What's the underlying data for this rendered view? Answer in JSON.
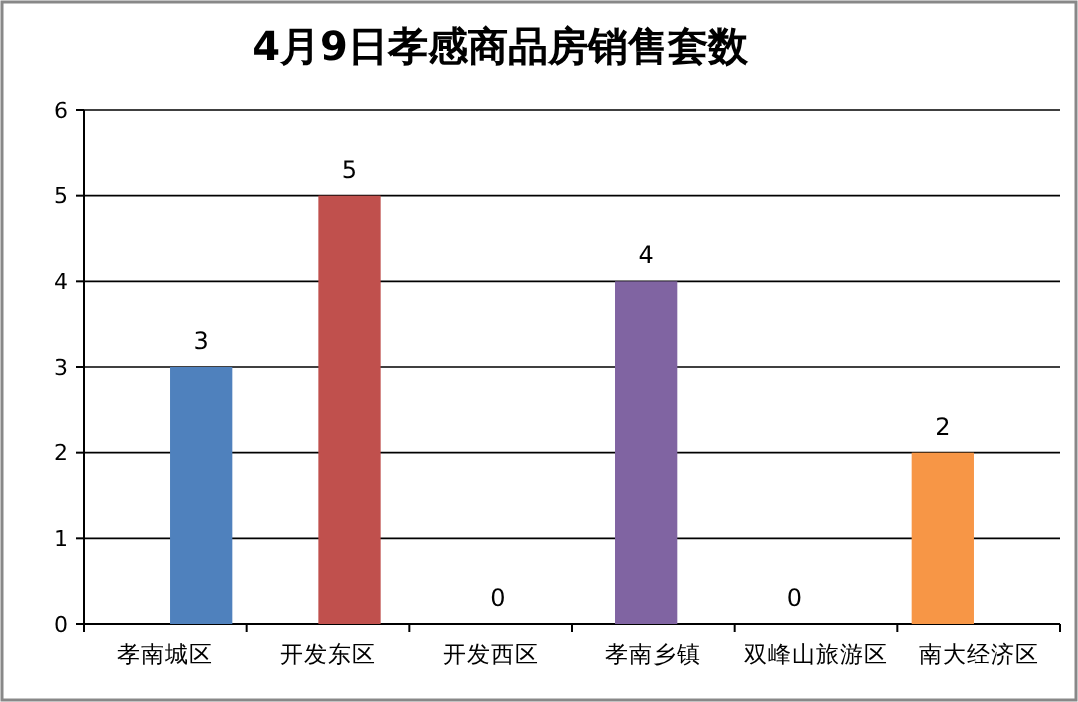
{
  "chart_data": {
    "type": "bar",
    "title": "4月9日孝感商品房销售套数",
    "categories": [
      "孝南城区",
      "开发东区",
      "开发西区",
      "孝南乡镇",
      "双峰山旅游区",
      "南大经济区"
    ],
    "values": [
      3,
      5,
      0,
      4,
      0,
      2
    ],
    "colors": [
      "#4f81bd",
      "#c0504d",
      "#9bbb59",
      "#8064a2",
      "#4bacc6",
      "#f79646"
    ],
    "ylim": [
      0,
      6
    ],
    "yticks": [
      0,
      1,
      2,
      3,
      4,
      5,
      6
    ],
    "grid": "y",
    "data_labels": true
  }
}
